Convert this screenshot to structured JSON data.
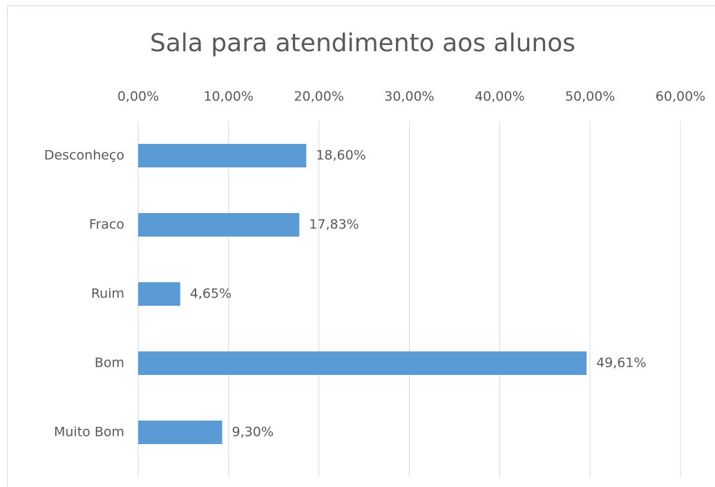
{
  "chart_data": {
    "type": "bar",
    "orientation": "horizontal",
    "title": "Sala para atendimento aos alunos",
    "categories": [
      "Desconheço",
      "Fraco",
      "Ruim",
      "Bom",
      "Muito Bom"
    ],
    "values": [
      18.6,
      17.83,
      4.65,
      49.61,
      9.3
    ],
    "value_labels": [
      "18,60%",
      "17,83%",
      "4,65%",
      "49,61%",
      "9,30%"
    ],
    "color": "#5b9bd5",
    "xlim": [
      0,
      60
    ],
    "xticks": [
      {
        "value": 0,
        "label": "0,00%"
      },
      {
        "value": 10,
        "label": "10,00%"
      },
      {
        "value": 20,
        "label": "20,00%"
      },
      {
        "value": 30,
        "label": "30,00%"
      },
      {
        "value": 40,
        "label": "40,00%"
      },
      {
        "value": 50,
        "label": "50,00%"
      },
      {
        "value": 60,
        "label": "60,00%"
      }
    ],
    "grid": true
  }
}
